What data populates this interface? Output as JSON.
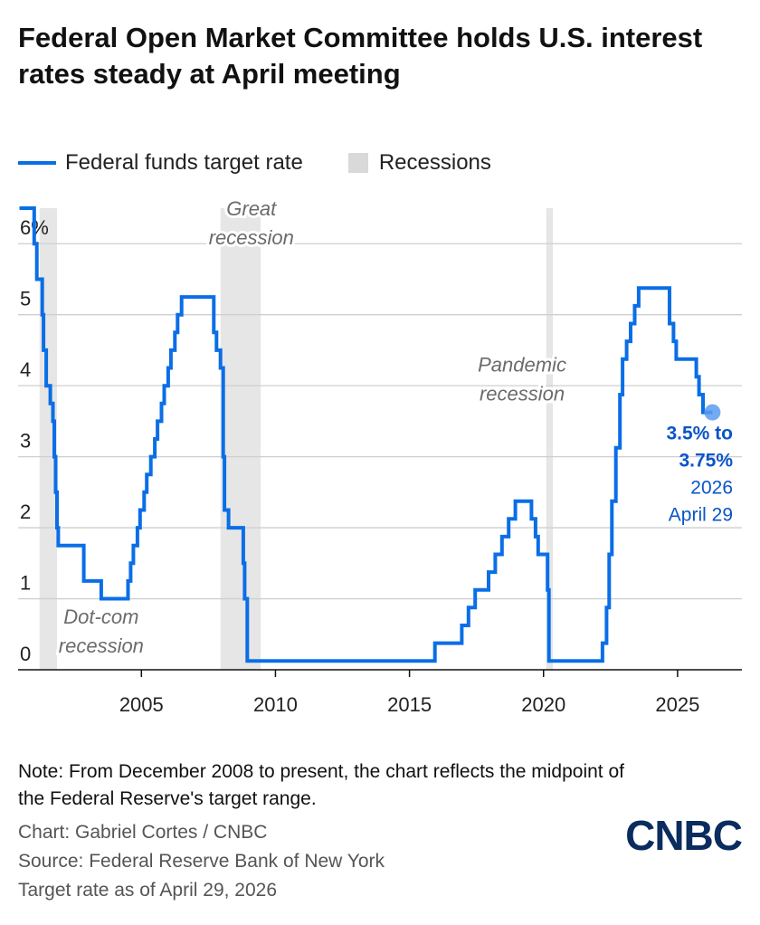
{
  "title": "Federal Open Market Committee holds U.S. interest rates steady at April meeting",
  "legend": {
    "line_label": "Federal funds target rate",
    "recession_label": "Recessions"
  },
  "colors": {
    "line": "#0a6ee6",
    "recession": "#e6e6e6",
    "annotation": "#0a55c8"
  },
  "chart_data": {
    "type": "line",
    "ylim": [
      0,
      6.5
    ],
    "yticks": [
      {
        "value": 0,
        "label": "0"
      },
      {
        "value": 1,
        "label": "1"
      },
      {
        "value": 2,
        "label": "2"
      },
      {
        "value": 3,
        "label": "3"
      },
      {
        "value": 4,
        "label": "4"
      },
      {
        "value": 5,
        "label": "5"
      },
      {
        "value": 6,
        "label": "6%"
      }
    ],
    "xlim": [
      2000.4,
      2027.4
    ],
    "xticks": [
      {
        "value": 2005,
        "label": "2005"
      },
      {
        "value": 2010,
        "label": "2010"
      },
      {
        "value": 2015,
        "label": "2015"
      },
      {
        "value": 2020,
        "label": "2020"
      },
      {
        "value": 2025,
        "label": "2025"
      }
    ],
    "grid": true,
    "recessions": [
      {
        "start": 2001.2,
        "end": 2001.85,
        "label_line1": "Dot-com",
        "label_line2": "recession",
        "label_x": 2003.5,
        "label_y": 0.65
      },
      {
        "start": 2007.95,
        "end": 2009.45,
        "label_line1": "Great",
        "label_line2": "recession",
        "label_x": 2009.1,
        "label_y": 6.4
      },
      {
        "start": 2020.1,
        "end": 2020.35,
        "label_line1": "Pandemic",
        "label_line2": "recession",
        "label_x": 2019.2,
        "label_y": 4.2
      }
    ],
    "series": [
      {
        "name": "Federal funds target rate",
        "points": [
          [
            2000.45,
            6.5
          ],
          [
            2001.0,
            6.5
          ],
          [
            2001.0,
            6.0
          ],
          [
            2001.1,
            6.0
          ],
          [
            2001.1,
            5.5
          ],
          [
            2001.3,
            5.5
          ],
          [
            2001.3,
            5.0
          ],
          [
            2001.35,
            5.0
          ],
          [
            2001.35,
            4.5
          ],
          [
            2001.45,
            4.5
          ],
          [
            2001.45,
            4.0
          ],
          [
            2001.6,
            4.0
          ],
          [
            2001.6,
            3.75
          ],
          [
            2001.7,
            3.75
          ],
          [
            2001.7,
            3.5
          ],
          [
            2001.75,
            3.5
          ],
          [
            2001.75,
            3.0
          ],
          [
            2001.8,
            3.0
          ],
          [
            2001.8,
            2.5
          ],
          [
            2001.85,
            2.5
          ],
          [
            2001.85,
            2.0
          ],
          [
            2001.9,
            2.0
          ],
          [
            2001.9,
            1.75
          ],
          [
            2002.85,
            1.75
          ],
          [
            2002.85,
            1.25
          ],
          [
            2003.5,
            1.25
          ],
          [
            2003.5,
            1.0
          ],
          [
            2004.5,
            1.0
          ],
          [
            2004.5,
            1.25
          ],
          [
            2004.6,
            1.25
          ],
          [
            2004.6,
            1.5
          ],
          [
            2004.7,
            1.5
          ],
          [
            2004.7,
            1.75
          ],
          [
            2004.85,
            1.75
          ],
          [
            2004.85,
            2.0
          ],
          [
            2004.95,
            2.0
          ],
          [
            2004.95,
            2.25
          ],
          [
            2005.1,
            2.25
          ],
          [
            2005.1,
            2.5
          ],
          [
            2005.2,
            2.5
          ],
          [
            2005.2,
            2.75
          ],
          [
            2005.35,
            2.75
          ],
          [
            2005.35,
            3.0
          ],
          [
            2005.5,
            3.0
          ],
          [
            2005.5,
            3.25
          ],
          [
            2005.6,
            3.25
          ],
          [
            2005.6,
            3.5
          ],
          [
            2005.75,
            3.5
          ],
          [
            2005.75,
            3.75
          ],
          [
            2005.85,
            3.75
          ],
          [
            2005.85,
            4.0
          ],
          [
            2006.0,
            4.0
          ],
          [
            2006.0,
            4.25
          ],
          [
            2006.1,
            4.25
          ],
          [
            2006.1,
            4.5
          ],
          [
            2006.25,
            4.5
          ],
          [
            2006.25,
            4.75
          ],
          [
            2006.35,
            4.75
          ],
          [
            2006.35,
            5.0
          ],
          [
            2006.5,
            5.0
          ],
          [
            2006.5,
            5.25
          ],
          [
            2007.7,
            5.25
          ],
          [
            2007.7,
            4.75
          ],
          [
            2007.8,
            4.75
          ],
          [
            2007.8,
            4.5
          ],
          [
            2007.95,
            4.5
          ],
          [
            2007.95,
            4.25
          ],
          [
            2008.05,
            4.25
          ],
          [
            2008.05,
            3.0
          ],
          [
            2008.1,
            3.0
          ],
          [
            2008.1,
            2.25
          ],
          [
            2008.25,
            2.25
          ],
          [
            2008.25,
            2.0
          ],
          [
            2008.8,
            2.0
          ],
          [
            2008.8,
            1.5
          ],
          [
            2008.85,
            1.5
          ],
          [
            2008.85,
            1.0
          ],
          [
            2008.95,
            1.0
          ],
          [
            2008.95,
            0.125
          ],
          [
            2015.95,
            0.125
          ],
          [
            2015.95,
            0.375
          ],
          [
            2016.95,
            0.375
          ],
          [
            2016.95,
            0.625
          ],
          [
            2017.2,
            0.625
          ],
          [
            2017.2,
            0.875
          ],
          [
            2017.45,
            0.875
          ],
          [
            2017.45,
            1.125
          ],
          [
            2017.95,
            1.125
          ],
          [
            2017.95,
            1.375
          ],
          [
            2018.2,
            1.375
          ],
          [
            2018.2,
            1.625
          ],
          [
            2018.45,
            1.625
          ],
          [
            2018.45,
            1.875
          ],
          [
            2018.7,
            1.875
          ],
          [
            2018.7,
            2.125
          ],
          [
            2018.95,
            2.125
          ],
          [
            2018.95,
            2.375
          ],
          [
            2019.55,
            2.375
          ],
          [
            2019.55,
            2.125
          ],
          [
            2019.7,
            2.125
          ],
          [
            2019.7,
            1.875
          ],
          [
            2019.8,
            1.875
          ],
          [
            2019.8,
            1.625
          ],
          [
            2020.15,
            1.625
          ],
          [
            2020.15,
            1.125
          ],
          [
            2020.2,
            1.125
          ],
          [
            2020.2,
            0.125
          ],
          [
            2022.2,
            0.125
          ],
          [
            2022.2,
            0.375
          ],
          [
            2022.35,
            0.375
          ],
          [
            2022.35,
            0.875
          ],
          [
            2022.45,
            0.875
          ],
          [
            2022.45,
            1.625
          ],
          [
            2022.55,
            1.625
          ],
          [
            2022.55,
            2.375
          ],
          [
            2022.7,
            2.375
          ],
          [
            2022.7,
            3.125
          ],
          [
            2022.85,
            3.125
          ],
          [
            2022.85,
            3.875
          ],
          [
            2022.95,
            3.875
          ],
          [
            2022.95,
            4.375
          ],
          [
            2023.1,
            4.375
          ],
          [
            2023.1,
            4.625
          ],
          [
            2023.25,
            4.625
          ],
          [
            2023.25,
            4.875
          ],
          [
            2023.4,
            4.875
          ],
          [
            2023.4,
            5.125
          ],
          [
            2023.55,
            5.125
          ],
          [
            2023.55,
            5.375
          ],
          [
            2024.7,
            5.375
          ],
          [
            2024.7,
            4.875
          ],
          [
            2024.85,
            4.875
          ],
          [
            2024.85,
            4.625
          ],
          [
            2024.95,
            4.625
          ],
          [
            2024.95,
            4.375
          ],
          [
            2025.7,
            4.375
          ],
          [
            2025.7,
            4.125
          ],
          [
            2025.8,
            4.125
          ],
          [
            2025.8,
            3.875
          ],
          [
            2025.95,
            3.875
          ],
          [
            2025.95,
            3.625
          ],
          [
            2026.3,
            3.625
          ]
        ]
      }
    ],
    "endpoint": {
      "x": 2026.3,
      "y": 3.625
    },
    "annotation": {
      "line1": "3.5% to",
      "line2": "3.75%",
      "line3": "2026",
      "line4": "April 29"
    }
  },
  "footer": {
    "note": "Note: From December 2008 to present, the chart reflects the midpoint of the Federal Reserve's target range.",
    "chart_credit": "Chart: Gabriel Cortes / CNBC",
    "source": "Source: Federal Reserve Bank of New York",
    "as_of": "Target rate as of April 29, 2026",
    "logo_text": "CNBC"
  }
}
